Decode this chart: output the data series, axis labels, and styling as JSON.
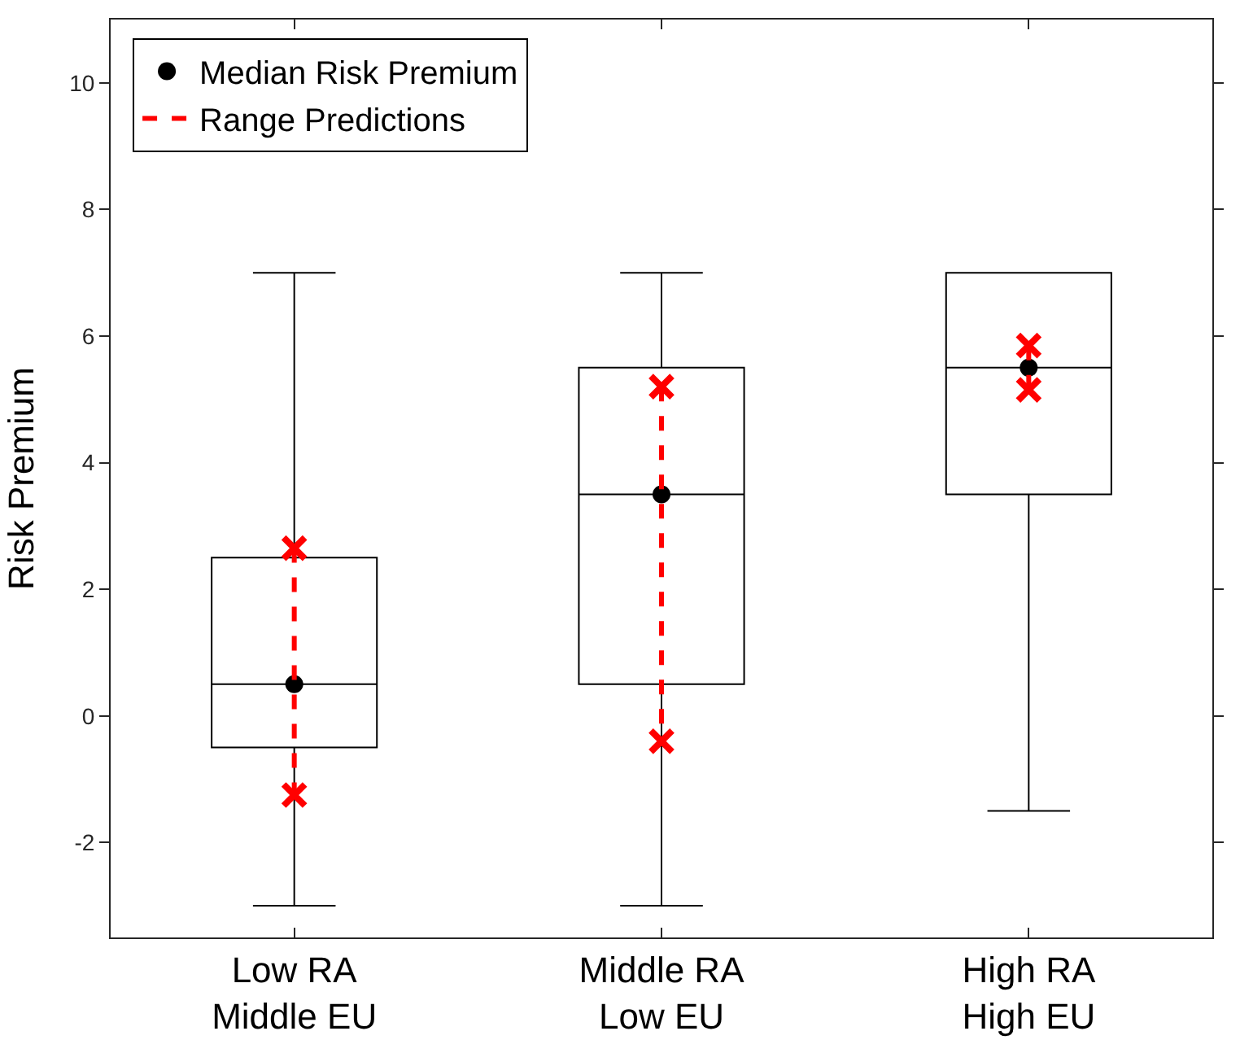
{
  "chart_data": {
    "type": "box",
    "ylabel": "Risk Premium",
    "categories": [
      "Low RA\nMiddle EU",
      "Middle RA\nLow EU",
      "High RA\nHigh EU"
    ],
    "boxes": [
      {
        "low": -3,
        "q1": -0.5,
        "median": 0.5,
        "q3": 2.5,
        "high": 7
      },
      {
        "low": -3,
        "q1": 0.5,
        "median": 3.5,
        "q3": 5.5,
        "high": 7
      },
      {
        "low": -1.5,
        "q1": 3.5,
        "median": 5.5,
        "q3": 7,
        "high": 7
      }
    ],
    "series": [
      {
        "name": "Median Risk Premium",
        "type": "scatter",
        "marker": "circle",
        "color": "#000000",
        "x": [
          "Low RA\nMiddle EU",
          "Middle RA\nLow EU",
          "High RA\nHigh EU"
        ],
        "values": [
          0.5,
          3.5,
          5.5
        ]
      },
      {
        "name": "Range Predictions",
        "type": "line",
        "line_style": "dashed",
        "marker": "cross",
        "color": "#ff0000",
        "x": [
          "Low RA\nMiddle EU",
          "Low RA\nMiddle EU",
          "Low RA\nMiddle EU",
          "Middle RA\nLow EU",
          "Middle RA\nLow EU",
          "Middle RA\nLow EU",
          "High RA\nHigh EU",
          "High RA\nHigh EU"
        ],
        "values": [
          2.65,
          -1.25,
          null,
          5.2,
          -0.4,
          null,
          5.85,
          5.15
        ]
      }
    ],
    "ylim": [
      -3.5,
      11
    ],
    "yticks": [
      -2,
      0,
      2,
      4,
      6,
      8,
      10
    ],
    "legend": "top left"
  }
}
